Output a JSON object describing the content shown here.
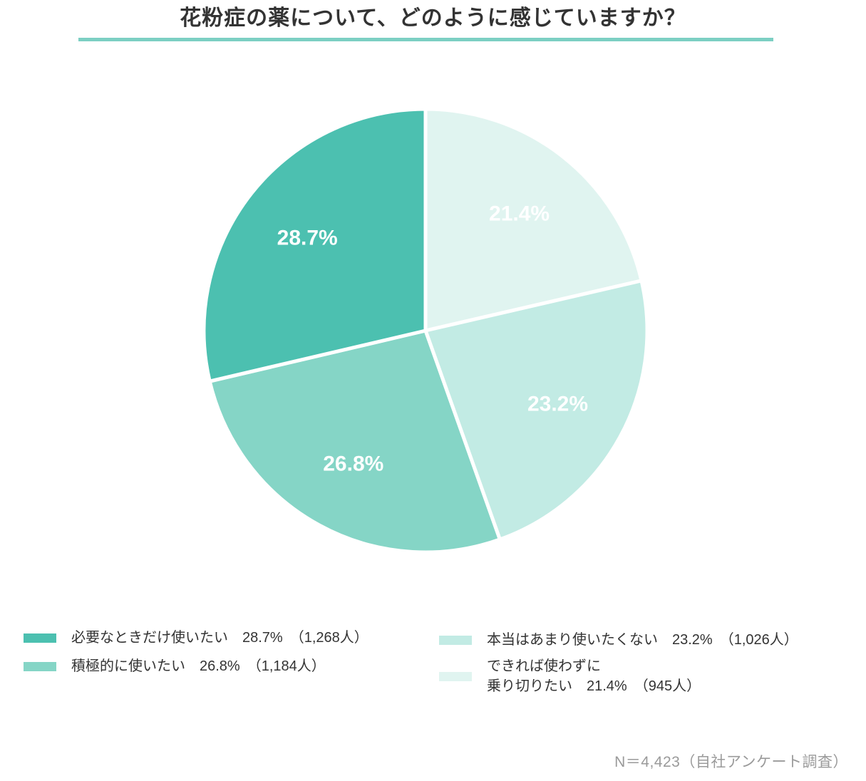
{
  "page": {
    "title": "花粉症の薬について、どのように感じていますか？",
    "footer_note": "N＝4,423（自社アンケート調査）",
    "accent_color": "#7ccfc3",
    "background_color": "#ffffff"
  },
  "chart_data": {
    "type": "pie",
    "title": "花粉症の薬について、どのように感じていますか？",
    "sample_size_note": "N＝4,423（自社アンケート調査）",
    "n_total": "4,423",
    "start_position": "12-oclock",
    "clockwise_order_from_top": [
      "できれば使わずに乗り切りたい",
      "本当はあまり使いたくない",
      "積極的に使いたい",
      "必要なときだけ使いたい"
    ],
    "separator_color": "#ffffff",
    "data_label_color": "#ffffff",
    "slices": [
      {
        "label": "必要なときだけ使いたい",
        "percent": 28.7,
        "count": 1268,
        "data_label": "28.7%",
        "color": "#4cc0b0"
      },
      {
        "label": "積極的に使いたい",
        "percent": 26.8,
        "count": 1184,
        "data_label": "26.8%",
        "color": "#85d5c6"
      },
      {
        "label": "本当はあまり使いたくない",
        "percent": 23.2,
        "count": 1026,
        "data_label": "23.2%",
        "color": "#c2ebe4"
      },
      {
        "label": "できれば使わずに乗り切りたい",
        "percent": 21.4,
        "count": 945,
        "data_label": "21.4%",
        "color": "#e0f4f0"
      }
    ],
    "legend": {
      "position": "bottom",
      "left_column": [
        {
          "swatch_color": "#4cc0b0",
          "lines": [
            "必要なときだけ使いたい　28.7%　（1,268人）"
          ]
        },
        {
          "swatch_color": "#85d5c6",
          "lines": [
            "積極的に使いたい　26.8%　（1,184人）"
          ]
        }
      ],
      "right_column": [
        {
          "swatch_color": "#c2ebe4",
          "lines": [
            "本当はあまり使いたくない　23.2%　（1,026人）"
          ]
        },
        {
          "swatch_color": "#e0f4f0",
          "lines": [
            "できれば使わずに",
            "乗り切りたい　21.4%　（945人）"
          ]
        }
      ]
    }
  }
}
